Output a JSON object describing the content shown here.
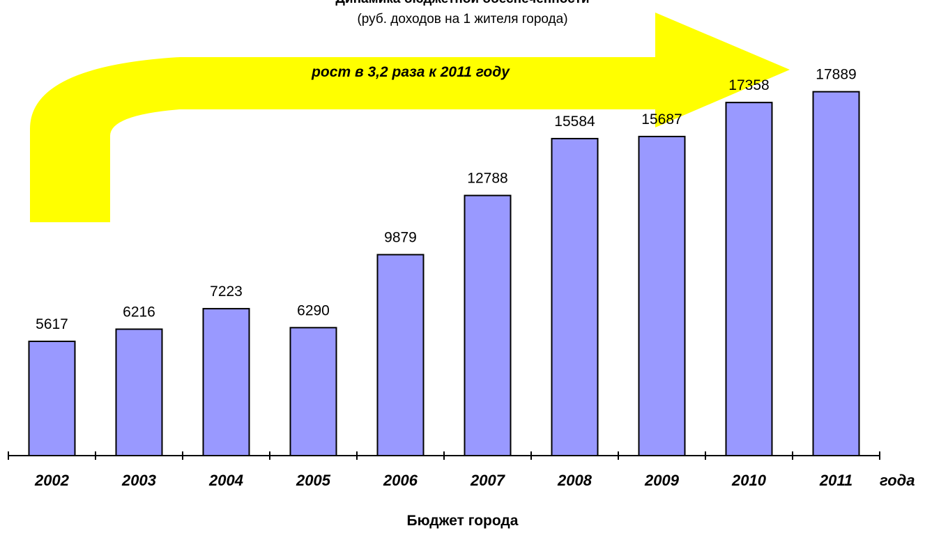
{
  "chart_data": {
    "type": "bar",
    "title": "Динамика бюджетной обеспеченности",
    "subtitle": "(руб. доходов на 1 жителя города)",
    "annotation": "рост в 3,2 раза к 2011 году",
    "xlabel": "года",
    "footer": "Бюджет города",
    "categories": [
      "2002",
      "2003",
      "2004",
      "2005",
      "2006",
      "2007",
      "2008",
      "2009",
      "2010",
      "2011"
    ],
    "values": [
      5617,
      6216,
      7223,
      6290,
      9879,
      12788,
      15584,
      15687,
      17358,
      17889
    ],
    "data_labels": [
      "5617",
      "6216",
      "7223",
      "6290",
      "9879",
      "12788",
      "15584",
      "15687",
      "17358",
      "17889"
    ],
    "ylim": [
      0,
      25000
    ],
    "grid": false,
    "legend": "none",
    "bar_color": "#9999ff",
    "arrow_color": "#ffff00"
  }
}
